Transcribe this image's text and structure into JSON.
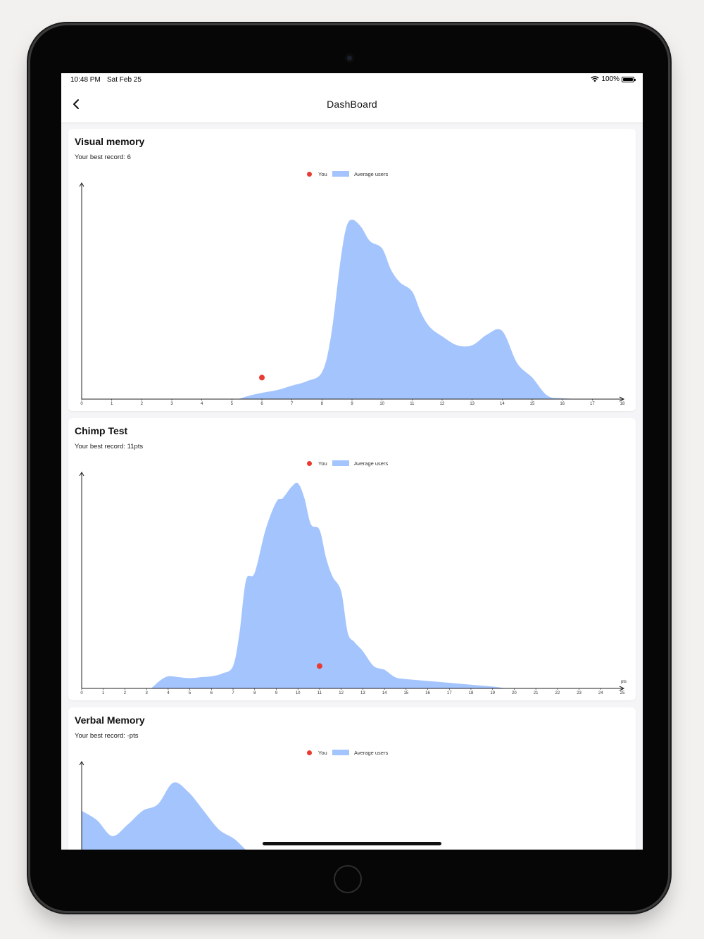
{
  "status_bar": {
    "time": "10:48 PM",
    "date": "Sat Feb 25",
    "battery": "100%"
  },
  "header": {
    "title": "DashBoard",
    "back_icon": "chevron-left-icon"
  },
  "legend": {
    "you_label": "You",
    "average_label": "Average users",
    "you_color": "#e93b32",
    "average_color": "#a3c4fd"
  },
  "cards": [
    {
      "title": "Visual memory",
      "subtitle": "Your best record: 6"
    },
    {
      "title": "Chimp Test",
      "subtitle": "Your best record: 11pts"
    },
    {
      "title": "Verbal Memory",
      "subtitle": "Your best record: -pts"
    }
  ],
  "chart_data": [
    {
      "type": "area",
      "title": "Visual memory",
      "xlabel": "",
      "ylabel": "",
      "xlim": [
        0,
        18
      ],
      "x_ticks": [
        "0",
        "1",
        "2",
        "3",
        "4",
        "5",
        "6",
        "7",
        "8",
        "9",
        "10",
        "11",
        "12",
        "13",
        "14",
        "15",
        "16",
        "17",
        "18"
      ],
      "series": [
        {
          "name": "Average users",
          "x": [
            0,
            1,
            2,
            3,
            4,
            5,
            5.2,
            5.6,
            6,
            6.5,
            7,
            7.5,
            8,
            8.3,
            8.6,
            8.8,
            9,
            9.3,
            9.6,
            10,
            10.3,
            10.6,
            11,
            11.3,
            11.6,
            12,
            12.5,
            13,
            13.5,
            14,
            14.5,
            15,
            15.5,
            16,
            17,
            18
          ],
          "values": [
            0,
            0,
            0,
            0,
            0,
            0,
            0,
            0.02,
            0.035,
            0.05,
            0.075,
            0.1,
            0.15,
            0.35,
            0.75,
            0.95,
            1.0,
            0.96,
            0.88,
            0.84,
            0.72,
            0.65,
            0.6,
            0.48,
            0.4,
            0.35,
            0.3,
            0.3,
            0.36,
            0.38,
            0.2,
            0.12,
            0.02,
            0.005,
            0,
            0
          ]
        },
        {
          "name": "You",
          "points": [
            {
              "x": 6,
              "y": 0.12
            }
          ]
        }
      ]
    },
    {
      "type": "area",
      "title": "Chimp Test",
      "xlabel": "pts",
      "ylabel": "",
      "xlim": [
        0,
        25
      ],
      "x_ticks": [
        "0",
        "1",
        "2",
        "3",
        "4",
        "5",
        "6",
        "7",
        "8",
        "9",
        "10",
        "11",
        "12",
        "13",
        "14",
        "15",
        "16",
        "17",
        "18",
        "19",
        "20",
        "21",
        "22",
        "23",
        "24",
        "25"
      ],
      "series": [
        {
          "name": "Average users",
          "x": [
            0,
            1,
            2,
            3,
            3.2,
            3.6,
            4,
            4.5,
            5,
            5.5,
            6,
            6.5,
            7,
            7.3,
            7.6,
            8,
            8.5,
            9,
            9.3,
            9.7,
            10,
            10.3,
            10.6,
            11,
            11.3,
            11.6,
            12,
            12.3,
            12.6,
            13,
            13.5,
            14,
            14.5,
            15,
            16,
            17,
            18,
            19,
            19.7,
            20,
            21,
            25
          ],
          "values": [
            0,
            0,
            0,
            0,
            0,
            0.04,
            0.065,
            0.06,
            0.055,
            0.06,
            0.065,
            0.08,
            0.12,
            0.3,
            0.58,
            0.62,
            0.85,
            1.0,
            1.02,
            1.08,
            1.1,
            1.02,
            0.88,
            0.85,
            0.7,
            0.6,
            0.52,
            0.3,
            0.25,
            0.2,
            0.12,
            0.1,
            0.06,
            0.05,
            0.04,
            0.03,
            0.02,
            0.01,
            0,
            0,
            0,
            0
          ]
        },
        {
          "name": "You",
          "points": [
            {
              "x": 11,
              "y": 0.12
            }
          ]
        }
      ]
    },
    {
      "type": "area",
      "title": "Verbal Memory",
      "xlabel": "",
      "ylabel": "",
      "series": [
        {
          "name": "Average users",
          "x": [
            0,
            0.5,
            1,
            1.5,
            2,
            2.5,
            3,
            3.5,
            4,
            4.5,
            5,
            5.5,
            6
          ],
          "values": [
            0.55,
            0.45,
            0.28,
            0.4,
            0.55,
            0.62,
            0.85,
            0.75,
            0.55,
            0.35,
            0.25,
            0.1,
            0
          ]
        }
      ]
    }
  ]
}
